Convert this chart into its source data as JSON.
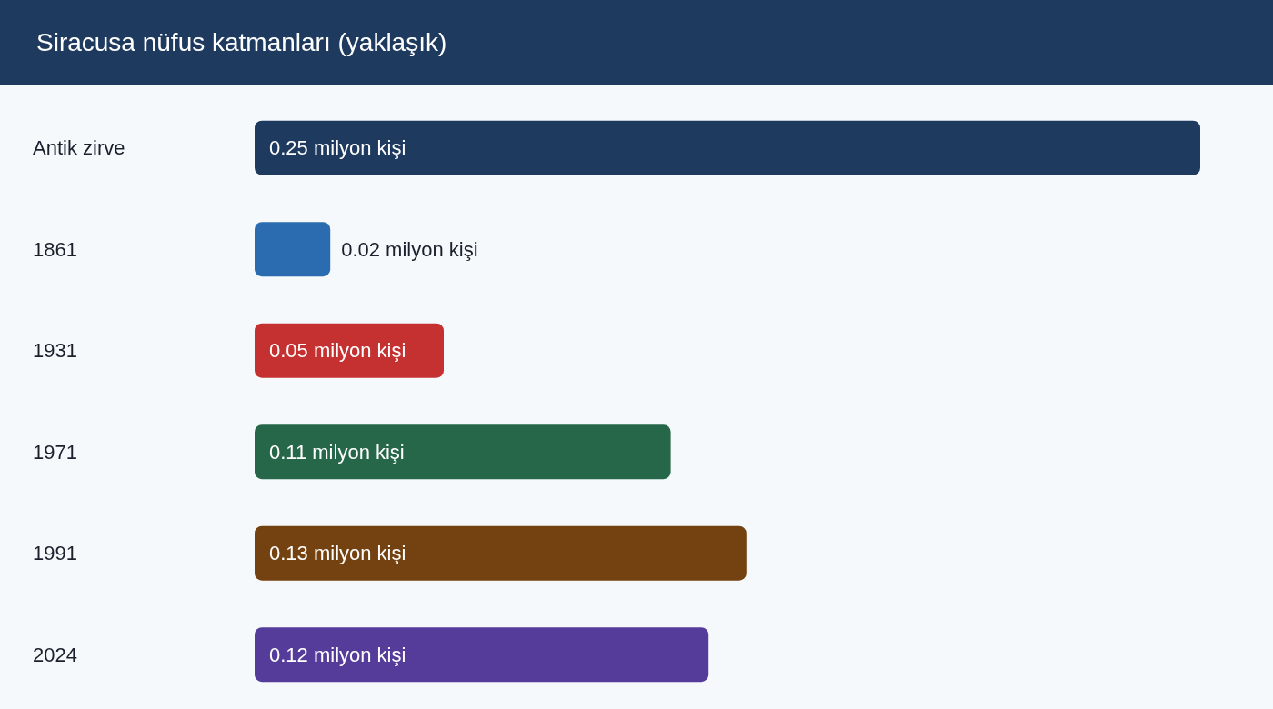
{
  "chart_data": {
    "type": "bar",
    "orientation": "horizontal",
    "title": "Siracusa nüfus katmanları (yaklaşık)",
    "categories": [
      "Antik zirve",
      "1861",
      "1931",
      "1971",
      "1991",
      "2024"
    ],
    "values": [
      0.25,
      0.02,
      0.05,
      0.11,
      0.13,
      0.12
    ],
    "colors": [
      "#1f3a5f",
      "#2b6cb0",
      "#c53030",
      "#276749",
      "#744210",
      "#553c9a"
    ],
    "value_labels": [
      "0.25 milyon kişi",
      "0.02 milyon kişi",
      "0.05 milyon kişi",
      "0.11 milyon kişi",
      "0.13 milyon kişi",
      "0.12 milyon kişi"
    ],
    "tick_labels": "y"
  }
}
